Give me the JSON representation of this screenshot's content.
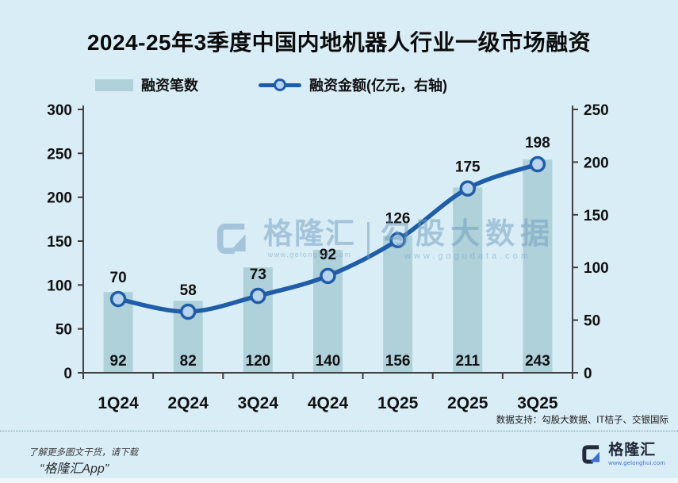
{
  "legend": {
    "bars_label": "融资笔数",
    "line_label": "融资金额(亿元，右轴)"
  },
  "source_note": "数据支持：勾股大数据、IT桔子、交银国际",
  "watermark": {
    "brand": "格隆汇",
    "brand_url": "www.gelonghui.com",
    "product": "勾股大数据",
    "product_url": "www.gogudata.com"
  },
  "footer": {
    "promo_line1": "了解更多图文干货，请下载",
    "promo_line2": "“格隆汇App”",
    "logo_text": "格隆汇",
    "logo_url": "www.gelonghui.com"
  },
  "colors": {
    "background": "#d9edf6",
    "bar": "#aed1da",
    "line": "#1f5da8",
    "marker_fill": "#b7d3ee",
    "axis": "#3f3f3f",
    "logo_navy": "#232a3b",
    "logo_blue": "#3d6fd6"
  },
  "chart_data": {
    "type": "bar+line",
    "title": "2024-25年3季度中国内地机器人行业一级市场融资",
    "categories": [
      "1Q24",
      "2Q24",
      "3Q24",
      "4Q24",
      "1Q25",
      "2Q25",
      "3Q25"
    ],
    "series": [
      {
        "name": "融资笔数",
        "chart": "bar",
        "axis": "left",
        "values": [
          92,
          82,
          120,
          140,
          156,
          211,
          243
        ]
      },
      {
        "name": "融资金额(亿元，右轴)",
        "chart": "line",
        "axis": "right",
        "values": [
          70,
          58,
          73,
          92,
          126,
          175,
          198
        ]
      }
    ],
    "left_axis": {
      "min": 0,
      "max": 300,
      "step": 50
    },
    "right_axis": {
      "min": 0,
      "max": 250,
      "step": 50
    },
    "grid": false,
    "legend_position": "top",
    "xlabel": "",
    "ylabel": ""
  }
}
